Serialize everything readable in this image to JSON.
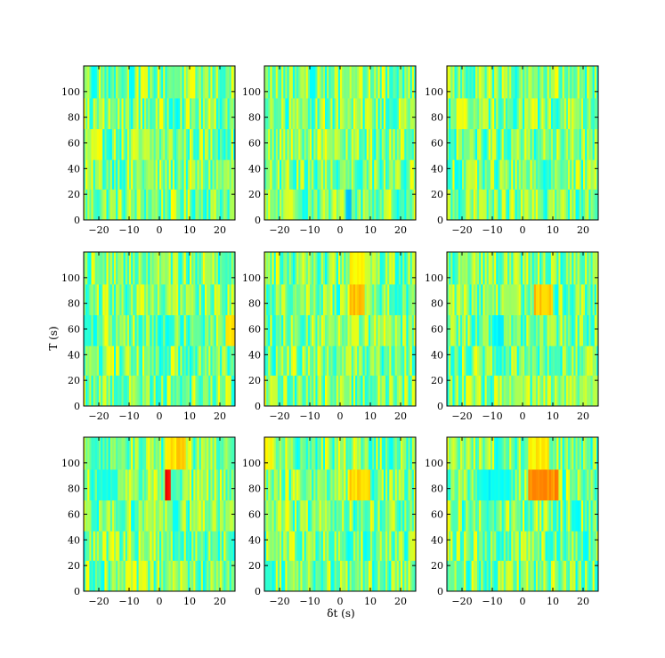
{
  "chart_data": {
    "type": "heatmap",
    "layout": {
      "rows": 3,
      "cols": 3
    },
    "xlabel": "δt (s)",
    "ylabel": "T (s)",
    "xlim": [
      -25,
      25
    ],
    "ylim": [
      0,
      120
    ],
    "xticks": [
      -20,
      -10,
      0,
      10,
      20
    ],
    "xtick_labels": [
      "−20",
      "−10",
      "0",
      "10",
      "20"
    ],
    "yticks": [
      0,
      20,
      40,
      60,
      80,
      100
    ],
    "ytick_labels": [
      "0",
      "20",
      "40",
      "60",
      "80",
      "100"
    ],
    "row_edges": [
      0,
      24,
      47,
      71,
      95,
      120
    ],
    "n_columns": 80,
    "colormap": "jet",
    "color_range": [
      0,
      1
    ],
    "typical_cell_value": 0.5,
    "colors": {
      "blue": "#0000c0",
      "cyan": "#00d8ff",
      "green": "#60ff9c",
      "yellow": "#ffff00",
      "red": "#ff0000",
      "frame": "#000000"
    },
    "panels": [
      {
        "row": 0,
        "col": 0,
        "hotspots": []
      },
      {
        "row": 0,
        "col": 1,
        "hotspots": [
          {
            "dt": [
              2,
              4
            ],
            "T": [
              0,
              24
            ],
            "value": 0.3
          }
        ]
      },
      {
        "row": 0,
        "col": 2,
        "hotspots": []
      },
      {
        "row": 1,
        "col": 0,
        "hotspots": [
          {
            "dt": [
              22,
              25
            ],
            "T": [
              47,
              71
            ],
            "value": 0.66
          }
        ]
      },
      {
        "row": 1,
        "col": 1,
        "hotspots": [
          {
            "dt": [
              3,
              8
            ],
            "T": [
              71,
              95
            ],
            "value": 0.68
          },
          {
            "dt": [
              3,
              8
            ],
            "T": [
              95,
              120
            ],
            "value": 0.62
          },
          {
            "dt": [
              4,
              6
            ],
            "T": [
              47,
              71
            ],
            "value": 0.62
          }
        ]
      },
      {
        "row": 1,
        "col": 2,
        "hotspots": [
          {
            "dt": [
              4,
              10
            ],
            "T": [
              71,
              95
            ],
            "value": 0.68
          },
          {
            "dt": [
              -10,
              -6
            ],
            "T": [
              47,
              71
            ],
            "value": 0.38
          }
        ]
      },
      {
        "row": 2,
        "col": 0,
        "hotspots": [
          {
            "dt": [
              2,
              4
            ],
            "T": [
              71,
              95
            ],
            "value": 0.88
          },
          {
            "dt": [
              2,
              9
            ],
            "T": [
              95,
              120
            ],
            "value": 0.66
          },
          {
            "dt": [
              -20,
              -14
            ],
            "T": [
              71,
              95
            ],
            "value": 0.4
          }
        ]
      },
      {
        "row": 2,
        "col": 1,
        "hotspots": [
          {
            "dt": [
              3,
              10
            ],
            "T": [
              71,
              95
            ],
            "value": 0.66
          },
          {
            "dt": [
              -25,
              -22
            ],
            "T": [
              95,
              120
            ],
            "value": 0.62
          }
        ]
      },
      {
        "row": 2,
        "col": 2,
        "hotspots": [
          {
            "dt": [
              2,
              12
            ],
            "T": [
              71,
              95
            ],
            "value": 0.74
          },
          {
            "dt": [
              2,
              9
            ],
            "T": [
              95,
              120
            ],
            "value": 0.64
          },
          {
            "dt": [
              -14,
              -4
            ],
            "T": [
              71,
              95
            ],
            "value": 0.38
          }
        ]
      }
    ]
  }
}
